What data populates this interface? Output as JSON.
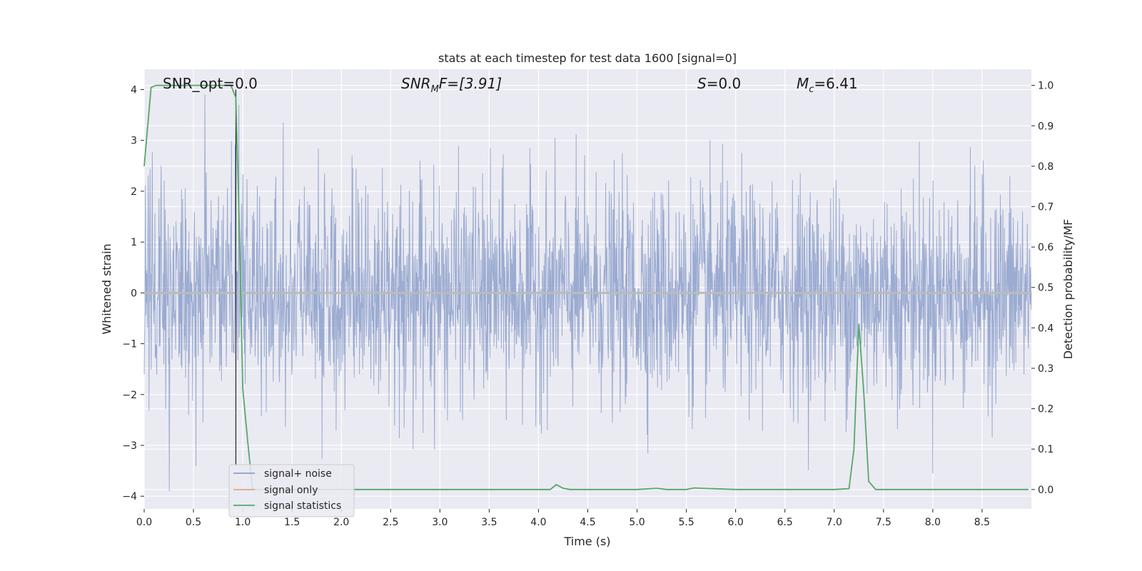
{
  "chart_data": {
    "type": "line",
    "title": "stats at each timestep for test data 1600 [signal=0]",
    "xlabel": "Time (s)",
    "ylabel_left": "Whitened strain",
    "ylabel_right": "Detection probability/MF",
    "xlim": [
      0,
      9
    ],
    "ylim_left": [
      -4.25,
      4.4
    ],
    "ylim_right": [
      -0.048,
      1.04
    ],
    "x_ticks": [
      0.0,
      0.5,
      1.0,
      1.5,
      2.0,
      2.5,
      3.0,
      3.5,
      4.0,
      4.5,
      5.0,
      5.5,
      6.0,
      6.5,
      7.0,
      7.5,
      8.0,
      8.5
    ],
    "x_tick_labels": [
      "0.0",
      "0.5",
      "1.0",
      "1.5",
      "2.0",
      "2.5",
      "3.0",
      "3.5",
      "4.0",
      "4.5",
      "5.0",
      "5.5",
      "6.0",
      "6.5",
      "7.0",
      "7.5",
      "8.0",
      "8.5"
    ],
    "y_ticks_left": [
      -4,
      -3,
      -2,
      -1,
      0,
      1,
      2,
      3,
      4
    ],
    "y_tick_labels_left": [
      "−4",
      "−3",
      "−2",
      "−1",
      "0",
      "1",
      "2",
      "3",
      "4"
    ],
    "y_ticks_right": [
      0.0,
      0.1,
      0.2,
      0.3,
      0.4,
      0.5,
      0.6,
      0.7,
      0.8,
      0.9,
      1.0
    ],
    "y_tick_labels_right": [
      "0.0",
      "0.1",
      "0.2",
      "0.3",
      "0.4",
      "0.5",
      "0.6",
      "0.7",
      "0.8",
      "0.9",
      "1.0"
    ],
    "grid": true,
    "legend_position": "lower-left",
    "annotations": {
      "snr_opt": "SNR_opt=0.0",
      "snr_mf_main": "SNR",
      "snr_mf_sub": "M",
      "snr_mf_rest": "F=[3.91]",
      "s_main": "S",
      "s_rest": "=0.0",
      "mc_main": "M",
      "mc_sub": "c",
      "mc_rest": "=6.41"
    },
    "vertical_marker_x": 0.93,
    "series": [
      {
        "name": "signal+ noise",
        "color": "#8da0cb",
        "axis": "left",
        "description_values": {
          "approx_range": [
            -3.9,
            3.9
          ],
          "samples": "noise"
        }
      },
      {
        "name": "signal only",
        "color": "#e8a08a",
        "axis": "left",
        "values_constant": 0.0
      },
      {
        "name": "signal statistics",
        "color": "#55a868",
        "axis": "right",
        "x": [
          0.0,
          0.07,
          0.12,
          0.2,
          0.3,
          0.5,
          0.7,
          0.88,
          0.93,
          0.97,
          1.0,
          1.05,
          1.1,
          1.2,
          1.5,
          2.0,
          2.5,
          3.0,
          3.5,
          3.8,
          4.0,
          4.12,
          4.18,
          4.25,
          4.32,
          4.5,
          4.8,
          5.0,
          5.2,
          5.3,
          5.5,
          5.58,
          5.65,
          6.0,
          6.5,
          7.0,
          7.15,
          7.2,
          7.25,
          7.3,
          7.35,
          7.42,
          7.5,
          8.0,
          8.5,
          8.97
        ],
        "values": [
          0.8,
          0.995,
          1.0,
          1.0,
          1.0,
          1.0,
          1.0,
          1.0,
          0.97,
          0.6,
          0.25,
          0.12,
          0.0,
          0.0,
          0.0,
          0.0,
          0.0,
          0.0,
          0.0,
          0.0,
          0.0,
          0.0,
          0.012,
          0.003,
          0.0,
          0.0,
          0.0,
          0.0,
          0.003,
          0.0,
          0.0,
          0.004,
          0.003,
          0.0,
          0.0,
          0.0,
          0.002,
          0.1,
          0.41,
          0.24,
          0.02,
          0.0,
          0.0,
          0.0,
          0.0,
          0.0
        ]
      }
    ]
  }
}
